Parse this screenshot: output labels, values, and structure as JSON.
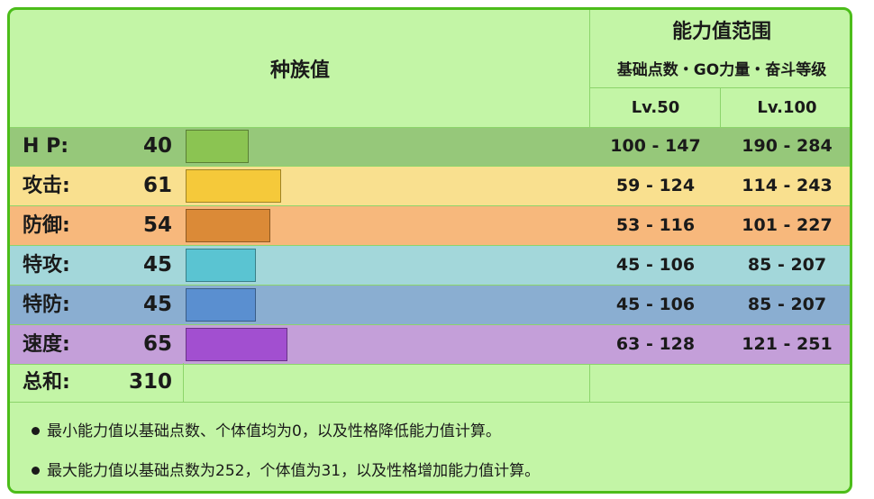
{
  "header": {
    "base_stats_title": "种族值",
    "range_title": "能力值范围",
    "range_subtitle": "基础点数・GO力量・奋斗等级",
    "lv50": "Lv.50",
    "lv100": "Lv.100"
  },
  "stats": [
    {
      "label": "H P:",
      "value": "40",
      "fraction": 0.157,
      "range50": "100 - 147",
      "range100": "190 - 284",
      "row_color": "#96c87a",
      "bar_color": "#8bc452"
    },
    {
      "label": "攻击:",
      "value": "61",
      "fraction": 0.239,
      "range50": "59 - 124",
      "range100": "114 - 243",
      "row_color": "#f9e08f",
      "bar_color": "#f5c93a"
    },
    {
      "label": "防御:",
      "value": "54",
      "fraction": 0.212,
      "range50": "53 - 116",
      "range100": "101 - 227",
      "row_color": "#f7b87c",
      "bar_color": "#db8a37"
    },
    {
      "label": "特攻:",
      "value": "45",
      "fraction": 0.176,
      "range50": "45 - 106",
      "range100": "85 - 207",
      "row_color": "#a3d7da",
      "bar_color": "#5ac4d2"
    },
    {
      "label": "特防:",
      "value": "45",
      "fraction": 0.176,
      "range50": "45 - 106",
      "range100": "85 - 207",
      "row_color": "#8aaed1",
      "bar_color": "#5a8fd0"
    },
    {
      "label": "速度:",
      "value": "65",
      "fraction": 0.255,
      "range50": "63 - 128",
      "range100": "121 - 251",
      "row_color": "#c49fd9",
      "bar_color": "#a24fd0"
    }
  ],
  "total": {
    "label": "总和:",
    "value": "310"
  },
  "notes": [
    "最小能力值以基础点数、个体值均为0，以及性格降低能力值计算。",
    "最大能力值以基础点数为252，个体值为31，以及性格增加能力值计算。"
  ]
}
